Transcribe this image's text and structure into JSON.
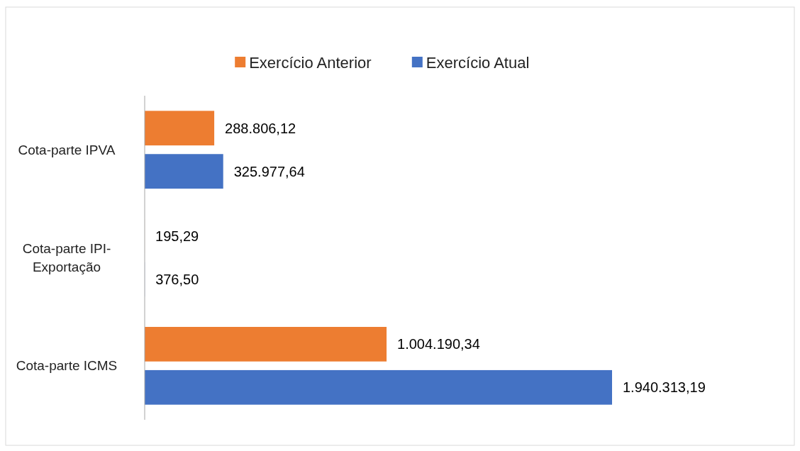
{
  "chart_data": {
    "type": "bar",
    "orientation": "horizontal",
    "categories": [
      "Cota-parte IPVA",
      "Cota-parte IPI-Exportação",
      "Cota-parte ICMS"
    ],
    "series": [
      {
        "name": "Exercício Anterior",
        "color": "#ed7d31",
        "values": [
          288806.12,
          195.29,
          1004190.34
        ],
        "value_labels": [
          "288.806,12",
          "195,29",
          "1.004.190,34"
        ]
      },
      {
        "name": "Exercício Atual",
        "color": "#4472c4",
        "values": [
          325977.64,
          376.5,
          1940313.19
        ],
        "value_labels": [
          "325.977,64",
          "376,50",
          "1.940.313,19"
        ]
      }
    ],
    "legend": "top"
  }
}
